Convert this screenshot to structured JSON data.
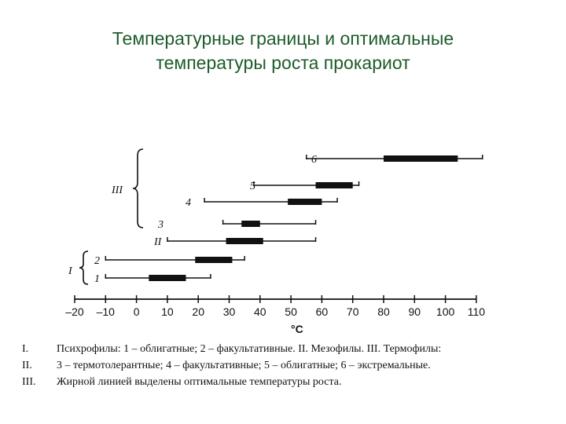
{
  "title": {
    "line1": "Температурные границы и оптимальные",
    "line2": "температуры роста прокариот"
  },
  "chart_data": {
    "type": "range-bar",
    "xlabel": "°C",
    "xlim": [
      -20,
      110
    ],
    "ticks": [
      -20,
      -10,
      0,
      10,
      20,
      30,
      40,
      50,
      60,
      70,
      80,
      90,
      100,
      110
    ],
    "groups": [
      {
        "label": "I",
        "rows": [
          "1",
          "2"
        ]
      },
      {
        "label": "II",
        "rows": [
          "II"
        ]
      },
      {
        "label": "III",
        "rows": [
          "3",
          "4",
          "5",
          "6"
        ]
      }
    ],
    "rows": [
      {
        "label": "6",
        "range": [
          55,
          112
        ],
        "optimum": [
          80,
          104
        ]
      },
      {
        "label": "5",
        "range": [
          38,
          72
        ],
        "optimum": [
          58,
          70
        ]
      },
      {
        "label": "4",
        "range": [
          22,
          65
        ],
        "optimum": [
          49,
          60
        ]
      },
      {
        "label": "3",
        "range": [
          28,
          58
        ],
        "optimum": [
          34,
          40
        ]
      },
      {
        "label": "II",
        "range": [
          10,
          58
        ],
        "optimum": [
          29,
          41
        ]
      },
      {
        "label": "2",
        "range": [
          -10,
          35
        ],
        "optimum": [
          19,
          31
        ]
      },
      {
        "label": "1",
        "range": [
          -10,
          24
        ],
        "optimum": [
          4,
          16
        ]
      }
    ]
  },
  "legend": [
    {
      "num": "I.",
      "text": "Психрофилы: 1 – облигатные; 2 – факультативные. II. Мезофилы. III. Термофилы:"
    },
    {
      "num": "II.",
      "text": "3 – термотолерантные; 4 – факультативные; 5 – облигатные; 6 – экстремальные."
    },
    {
      "num": "III.",
      "text": "Жирной линией выделены оптимальные температуры роста."
    }
  ]
}
